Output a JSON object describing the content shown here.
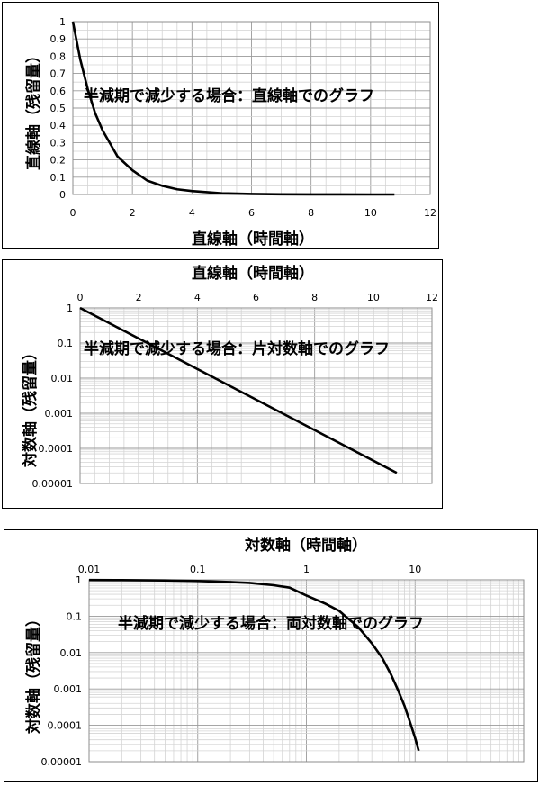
{
  "chart_data": [
    {
      "type": "line",
      "title": "半減期で減少する場合：直線軸でのグラフ",
      "xlabel": "直線軸（時間軸）",
      "ylabel": "直線軸（残留量）",
      "x_scale": "linear",
      "y_scale": "linear",
      "xlim": [
        0,
        12
      ],
      "ylim": [
        0,
        1
      ],
      "x_ticks": [
        "0",
        "2",
        "4",
        "6",
        "8",
        "10",
        "12"
      ],
      "y_ticks": [
        "0",
        "0.1",
        "0.2",
        "0.3",
        "0.4",
        "0.5",
        "0.6",
        "0.7",
        "0.8",
        "0.9",
        "1"
      ],
      "x_axis_position": "bottom",
      "grid": true,
      "series": [
        {
          "x": [
            0,
            0.25,
            0.5,
            0.75,
            1,
            1.5,
            2,
            2.5,
            3,
            3.5,
            4,
            5,
            6,
            7,
            8,
            9,
            10,
            10.8
          ],
          "y": [
            1,
            0.78,
            0.61,
            0.47,
            0.37,
            0.22,
            0.14,
            0.08,
            0.05,
            0.03,
            0.02,
            0.007,
            0.003,
            0.001,
            0.0004,
            0.0001,
            5e-05,
            2e-05
          ]
        }
      ]
    },
    {
      "type": "line",
      "title": "半減期で減少する場合：片対数軸でのグラフ",
      "xlabel": "直線軸（時間軸）",
      "ylabel": "対数軸（残留量）",
      "x_scale": "linear",
      "y_scale": "log",
      "xlim": [
        0,
        12
      ],
      "ylim": [
        1e-05,
        1
      ],
      "x_ticks": [
        "0",
        "2",
        "4",
        "6",
        "8",
        "10",
        "12"
      ],
      "y_ticks": [
        "1",
        "0.1",
        "0.01",
        "0.001",
        "0.0001",
        "0.00001"
      ],
      "x_axis_position": "top",
      "grid": true,
      "series": [
        {
          "x": [
            0,
            10.8
          ],
          "y": [
            1,
            2e-05
          ]
        }
      ]
    },
    {
      "type": "line",
      "title": "半減期で減少する場合：両対数軸でのグラフ",
      "xlabel": "対数軸（時間軸）",
      "ylabel": "対数軸（残留量）",
      "x_scale": "log",
      "y_scale": "log",
      "xlim": [
        0.01,
        100
      ],
      "ylim": [
        1e-05,
        1
      ],
      "x_ticks": [
        "0.01",
        "0.1",
        "1",
        "10"
      ],
      "y_ticks": [
        "1",
        "0.1",
        "0.01",
        "0.001",
        "0.0001",
        "0.00001"
      ],
      "x_axis_position": "top",
      "grid": true,
      "series": [
        {
          "x": [
            0.01,
            0.02,
            0.05,
            0.1,
            0.2,
            0.3,
            0.5,
            0.7,
            1,
            1.5,
            2,
            3,
            4,
            5,
            6,
            7,
            8,
            9,
            10,
            10.8
          ],
          "y": [
            0.99,
            0.98,
            0.96,
            0.93,
            0.87,
            0.82,
            0.71,
            0.61,
            0.37,
            0.22,
            0.14,
            0.05,
            0.018,
            0.007,
            0.0025,
            0.0009,
            0.00034,
            0.00012,
            4.5e-05,
            2e-05
          ]
        }
      ]
    }
  ]
}
